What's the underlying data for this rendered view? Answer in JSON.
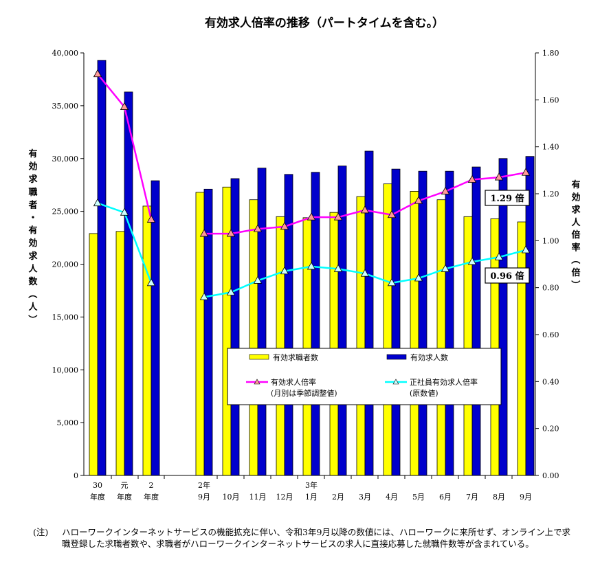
{
  "chart_data": {
    "type": "bar",
    "title": "有効求人倍率の推移（パートタイムを含む。）",
    "categories": [
      [
        "30",
        "年度"
      ],
      [
        "元",
        "年度"
      ],
      [
        "2",
        "年度"
      ],
      [
        "2年",
        "9月"
      ],
      [
        "",
        "10月"
      ],
      [
        "",
        "11月"
      ],
      [
        "",
        "12月"
      ],
      [
        "3年",
        "1月"
      ],
      [
        "",
        "2月"
      ],
      [
        "",
        "3月"
      ],
      [
        "",
        "4月"
      ],
      [
        "",
        "5月"
      ],
      [
        "",
        "6月"
      ],
      [
        "",
        "7月"
      ],
      [
        "",
        "8月"
      ],
      [
        "",
        "9月"
      ]
    ],
    "y_left": {
      "label": "有効求職者・有効求人数（人）",
      "range": [
        0,
        40000
      ],
      "ticks": [
        "0",
        "5,000",
        "10,000",
        "15,000",
        "20,000",
        "25,000",
        "30,000",
        "35,000",
        "40,000"
      ]
    },
    "y_right": {
      "label": "有効求人倍率（倍）",
      "range": [
        0,
        1.8
      ],
      "ticks": [
        "0.00",
        "0.20",
        "0.40",
        "0.60",
        "0.80",
        "1.00",
        "1.20",
        "1.40",
        "1.60",
        "1.80"
      ]
    },
    "series": [
      {
        "name": "有効求職者数",
        "kind": "bar",
        "axis": "left",
        "color": "#ffff00",
        "values": [
          22900,
          23100,
          25500,
          26800,
          27300,
          26100,
          24500,
          24400,
          24900,
          26400,
          27600,
          26900,
          26100,
          24500,
          24300,
          24000
        ]
      },
      {
        "name": "有効求人数",
        "kind": "bar",
        "axis": "left",
        "color": "#0000cc",
        "values": [
          39300,
          36300,
          27900,
          27100,
          28100,
          29100,
          28500,
          28700,
          29300,
          30700,
          29000,
          28800,
          28800,
          29200,
          30000,
          30200
        ]
      },
      {
        "name": "有効求人倍率",
        "name_sub": "(月別は季節調整値)",
        "kind": "line",
        "axis": "right",
        "color": "#ff00ff",
        "marker_fill": "#ff9999",
        "values": [
          1.71,
          1.57,
          1.09,
          1.03,
          1.03,
          1.05,
          1.06,
          1.1,
          1.1,
          1.13,
          1.11,
          1.17,
          1.21,
          1.26,
          1.27,
          1.29
        ]
      },
      {
        "name": "正社員有効求人倍率",
        "name_sub": "(原数値)",
        "kind": "line",
        "axis": "right",
        "color": "#00ffff",
        "marker_fill": "#ccffff",
        "values": [
          1.16,
          1.12,
          0.82,
          0.76,
          0.78,
          0.83,
          0.87,
          0.89,
          0.88,
          0.86,
          0.82,
          0.84,
          0.88,
          0.91,
          0.93,
          0.96
        ]
      }
    ],
    "callouts": [
      "1.29 倍",
      "0.96 倍"
    ],
    "legend_position": "center-right"
  },
  "note": {
    "label": "(注)",
    "text": "ハローワークインターネットサービスの機能拡充に伴い、令和3年9月以降の数値には、ハローワークに来所せず、オンライン上で求職登録した求職者数や、求職者がハローワークインターネットサービスの求人に直接応募した就職件数等が含まれている。"
  }
}
